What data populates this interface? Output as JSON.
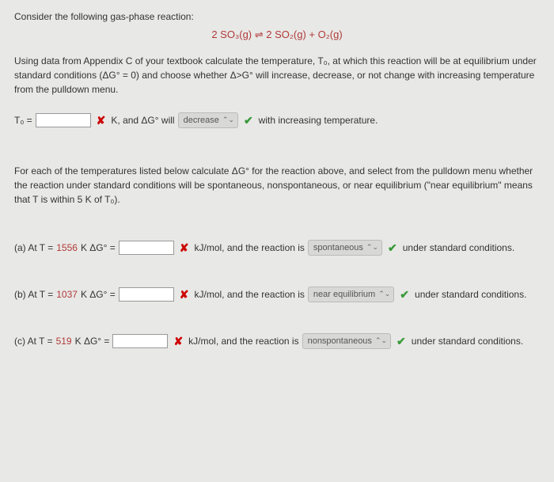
{
  "intro": "Consider the following gas-phase reaction:",
  "equation": "2 SO₃(g) ⇌ 2 SO₂(g) + O₂(g)",
  "para1": "Using data from Appendix C of your textbook calculate the temperature, T₀, at which this reaction will be at equilibrium under standard conditions (ΔG° = 0) and choose whether Δ>G° will increase, decrease, or not change with increasing temperature from the pulldown menu.",
  "t0": {
    "label_prefix": "T₀ =",
    "after_input": "K, and ΔG° will",
    "dropdown": "decrease",
    "tail": "with increasing temperature."
  },
  "para2": "For each of the temperatures listed below calculate ΔG° for the reaction above, and select from the pulldown menu whether the reaction under standard conditions will be spontaneous, nonspontaneous, or near equilibrium (\"near equilibrium\" means that T is within 5 K of T₀).",
  "parts": {
    "a": {
      "label": "(a) At T =",
      "temp": "1556",
      "post_temp": "K ΔG° =",
      "unit_text": "kJ/mol, and the reaction is",
      "dropdown": "spontaneous",
      "tail": "under standard conditions."
    },
    "b": {
      "label": "(b) At T =",
      "temp": "1037",
      "post_temp": "K ΔG° =",
      "unit_text": "kJ/mol, and the reaction is",
      "dropdown": "near equilibrium",
      "tail": "under standard conditions."
    },
    "c": {
      "label": "(c) At T =",
      "temp": "519",
      "post_temp": "K ΔG° =",
      "unit_text": "kJ/mol, and the reaction is",
      "dropdown": "nonspontaneous",
      "tail": "under standard conditions."
    }
  },
  "colors": {
    "bg": "#e8e8e6",
    "red_text": "#b03a3a",
    "x": "#c00",
    "check": "#3a9a3a"
  }
}
